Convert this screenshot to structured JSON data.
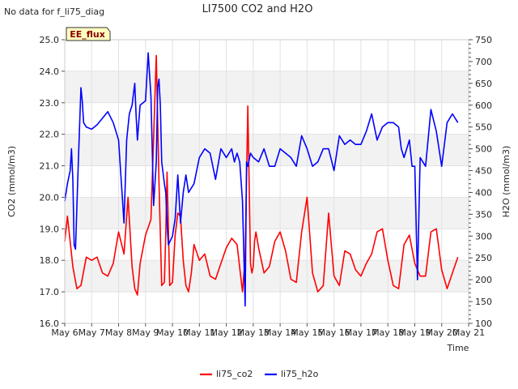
{
  "corner_note": "No data for f_li75_diag",
  "badge": "EE_flux",
  "chart_data": {
    "type": "line",
    "title": "LI7500 CO2 and H2O",
    "xlabel": "Time",
    "ylabel_left": "CO2 (mmol/m3)",
    "ylabel_right": "H2O (mmol/m3)",
    "x_ticks": [
      "May 6",
      "May 7",
      "May 8",
      "May 9",
      "May 10",
      "May 11",
      "May 12",
      "May 13",
      "May 14",
      "May 15",
      "May 16",
      "May 17",
      "May 18",
      "May 19",
      "May 20",
      "May 21"
    ],
    "xlim": [
      0,
      15
    ],
    "ylim_left": [
      16.0,
      25.0
    ],
    "ylim_right": [
      100,
      750
    ],
    "yticks_left": [
      "16.0",
      "17.0",
      "18.0",
      "19.0",
      "20.0",
      "21.0",
      "22.0",
      "23.0",
      "24.0",
      "25.0"
    ],
    "yticks_right": [
      "100",
      "150",
      "200",
      "250",
      "300",
      "350",
      "400",
      "450",
      "500",
      "550",
      "600",
      "650",
      "700",
      "750"
    ],
    "legend_position": "bottom-center",
    "series": [
      {
        "name": "li75_co2",
        "axis": "left",
        "color": "#ff0000",
        "x": [
          0.0,
          0.1,
          0.2,
          0.3,
          0.45,
          0.6,
          0.8,
          1.0,
          1.2,
          1.4,
          1.6,
          1.8,
          2.0,
          2.2,
          2.35,
          2.5,
          2.6,
          2.7,
          2.8,
          3.0,
          3.2,
          3.4,
          3.5,
          3.6,
          3.7,
          3.75,
          3.8,
          3.9,
          4.0,
          4.1,
          4.2,
          4.3,
          4.4,
          4.5,
          4.6,
          4.7,
          4.8,
          5.0,
          5.2,
          5.4,
          5.6,
          5.8,
          6.0,
          6.2,
          6.4,
          6.6,
          6.7,
          6.8,
          6.9,
          6.95,
          7.0,
          7.05,
          7.1,
          7.2,
          7.4,
          7.6,
          7.8,
          8.0,
          8.2,
          8.4,
          8.6,
          8.8,
          9.0,
          9.2,
          9.4,
          9.6,
          9.8,
          10.0,
          10.2,
          10.4,
          10.6,
          10.8,
          11.0,
          11.2,
          11.4,
          11.6,
          11.8,
          12.0,
          12.2,
          12.4,
          12.6,
          12.8,
          13.0,
          13.2,
          13.4,
          13.6,
          13.8,
          14.0,
          14.2,
          14.4,
          14.6
        ],
        "values": [
          18.6,
          19.4,
          18.6,
          17.8,
          17.1,
          17.2,
          18.1,
          18.0,
          18.1,
          17.6,
          17.5,
          17.9,
          18.9,
          18.2,
          20.0,
          17.8,
          17.1,
          16.9,
          17.9,
          18.8,
          19.3,
          24.5,
          20.5,
          17.2,
          17.3,
          18.8,
          20.8,
          17.2,
          17.3,
          18.8,
          19.5,
          19.4,
          18.0,
          17.2,
          17.0,
          17.6,
          18.5,
          18.0,
          18.2,
          17.5,
          17.4,
          17.9,
          18.4,
          18.7,
          18.5,
          17.0,
          18.1,
          22.9,
          17.9,
          17.6,
          17.8,
          18.6,
          18.9,
          18.4,
          17.6,
          17.8,
          18.6,
          18.9,
          18.3,
          17.4,
          17.3,
          18.9,
          20.0,
          17.6,
          17.0,
          17.2,
          19.5,
          17.5,
          17.2,
          18.3,
          18.2,
          17.7,
          17.5,
          17.9,
          18.2,
          18.9,
          19.0,
          18.0,
          17.2,
          17.1,
          18.5,
          18.8,
          17.9,
          17.5,
          17.5,
          18.9,
          19.0,
          17.7,
          17.1,
          17.6,
          18.1
        ]
      },
      {
        "name": "li75_h2o",
        "axis": "right",
        "color": "#0000ff",
        "x": [
          0.0,
          0.1,
          0.2,
          0.25,
          0.3,
          0.35,
          0.4,
          0.5,
          0.6,
          0.65,
          0.7,
          0.8,
          1.0,
          1.2,
          1.4,
          1.6,
          1.8,
          2.0,
          2.2,
          2.3,
          2.4,
          2.5,
          2.55,
          2.6,
          2.65,
          2.7,
          2.8,
          3.0,
          3.1,
          3.2,
          3.3,
          3.4,
          3.45,
          3.5,
          3.55,
          3.6,
          3.7,
          3.75,
          3.8,
          3.85,
          4.0,
          4.1,
          4.2,
          4.3,
          4.4,
          4.5,
          4.6,
          4.8,
          5.0,
          5.2,
          5.4,
          5.6,
          5.8,
          6.0,
          6.2,
          6.3,
          6.4,
          6.5,
          6.6,
          6.7,
          6.75,
          6.8,
          6.9,
          7.0,
          7.2,
          7.4,
          7.6,
          7.8,
          8.0,
          8.2,
          8.4,
          8.6,
          8.8,
          9.0,
          9.2,
          9.4,
          9.6,
          9.8,
          10.0,
          10.2,
          10.4,
          10.6,
          10.8,
          11.0,
          11.2,
          11.4,
          11.6,
          11.8,
          12.0,
          12.2,
          12.4,
          12.5,
          12.6,
          12.7,
          12.8,
          12.9,
          13.0,
          13.1,
          13.2,
          13.4,
          13.6,
          13.8,
          14.0,
          14.2,
          14.4,
          14.6
        ],
        "values": [
          380,
          420,
          450,
          500,
          430,
          280,
          270,
          460,
          640,
          610,
          560,
          550,
          545,
          555,
          570,
          585,
          560,
          520,
          330,
          520,
          580,
          600,
          625,
          650,
          575,
          520,
          600,
          610,
          720,
          620,
          370,
          470,
          640,
          660,
          600,
          470,
          420,
          400,
          330,
          280,
          300,
          340,
          440,
          330,
          400,
          440,
          400,
          420,
          480,
          500,
          490,
          430,
          500,
          480,
          500,
          470,
          490,
          470,
          380,
          140,
          470,
          460,
          490,
          480,
          470,
          500,
          460,
          460,
          500,
          490,
          480,
          460,
          530,
          500,
          460,
          470,
          500,
          500,
          450,
          530,
          510,
          520,
          510,
          510,
          540,
          580,
          520,
          550,
          560,
          560,
          550,
          500,
          480,
          500,
          520,
          460,
          460,
          200,
          480,
          460,
          590,
          540,
          460,
          560,
          580,
          560
        ]
      }
    ]
  }
}
